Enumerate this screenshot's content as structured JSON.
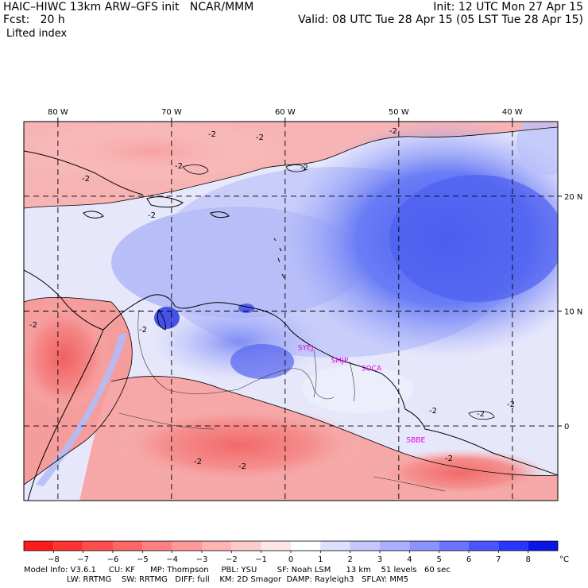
{
  "header": {
    "model_line": "HAIC–HIWC 13km ARW–GFS init   NCAR/MMM",
    "forecast_line": "Fcst:   20 h",
    "field_name": "Lifted index",
    "init_line": "Init: 12 UTC Mon 27 Apr 15",
    "valid_line": "Valid: 08 UTC Tue 28 Apr 15 (05 LST Tue 28 Apr 15)"
  },
  "map": {
    "lon_ticks": [
      "80 W",
      "70 W",
      "60 W",
      "50 W",
      "40 W"
    ],
    "lon_values": [
      -80,
      -70,
      -60,
      -50,
      -40
    ],
    "lat_ticks": [
      "20 N",
      "10 N",
      "0"
    ],
    "lat_values": [
      20,
      10,
      0
    ],
    "lon_range": [
      -83,
      -36
    ],
    "lat_range": [
      -6.5,
      26.5
    ],
    "contour_labels": [
      "-2",
      "-2",
      "-2",
      "-2",
      "-2",
      "-2",
      "-2",
      "-2",
      "-2",
      "-2",
      "-2",
      "-2",
      "-2",
      "-2",
      "-2"
    ],
    "stations": [
      {
        "name": "SYEJ",
        "lon": -58.2,
        "lat": 6.6
      },
      {
        "name": "SMJP",
        "lon": -55.2,
        "lat": 5.5
      },
      {
        "name": "SOCA",
        "lon": -52.4,
        "lat": 4.8
      },
      {
        "name": "SBBE",
        "lon": -48.5,
        "lat": -1.4
      }
    ],
    "station_color": "#dd00dd"
  },
  "colorbar": {
    "labels": [
      "−8",
      "−7",
      "−6",
      "−5",
      "−4",
      "−3",
      "−2",
      "−1",
      "0",
      "1",
      "2",
      "3",
      "4",
      "5",
      "6",
      "7",
      "8"
    ],
    "unit": "°C",
    "colors": [
      "#ff1a1a",
      "#ff3333",
      "#ff4d4d",
      "#ff6666",
      "#ff8080",
      "#ff9999",
      "#ffb3b3",
      "#ffcccc",
      "#ffe6e6",
      "#ffffff",
      "#dde0ff",
      "#c4c8ff",
      "#aab0ff",
      "#8c93ff",
      "#6b74ff",
      "#4a55ff",
      "#2a36ff",
      "#0a14e8"
    ]
  },
  "footer": {
    "line1": "Model Info: V3.6.1     CU: KF      MP: Thompson     PBL: YSU        SF: Noah LSM      13 km    51 levels   60 sec",
    "line2": "                 LW: RRTMG    SW: RRTMG   DIFF: full    KM: 2D Smagor  DAMP: Rayleigh3   SFLAY: MM5"
  }
}
